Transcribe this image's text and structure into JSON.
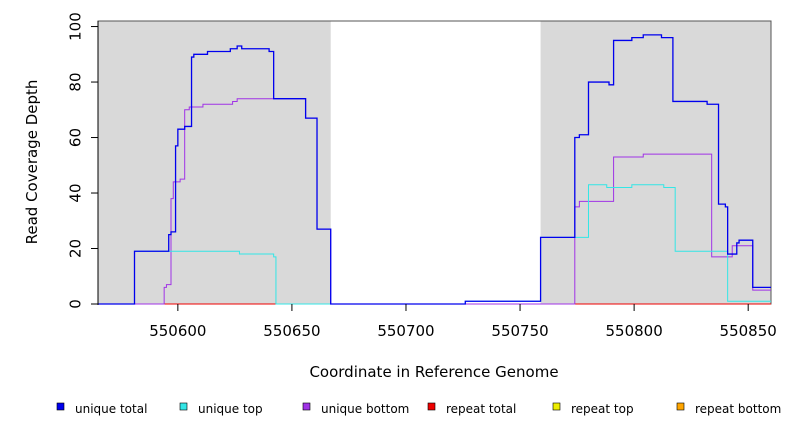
{
  "chart_data": {
    "type": "line",
    "title": "",
    "xlabel": "Coordinate in Reference Genome",
    "ylabel": "Read Coverage Depth",
    "xlim": [
      550565,
      550860
    ],
    "ylim": [
      0,
      102
    ],
    "x_ticks": [
      550600,
      550650,
      550700,
      550750,
      550800,
      550850
    ],
    "y_ticks": [
      0,
      20,
      40,
      60,
      80,
      100
    ],
    "shaded_regions": [
      {
        "from": 550565,
        "to": 550667,
        "color": "#d9d9d9"
      },
      {
        "from": 550759,
        "to": 550860,
        "color": "#d9d9d9"
      }
    ],
    "grid": false,
    "legend_position": "bottom",
    "series": [
      {
        "name": "unique total",
        "color": "#0000ee",
        "points": [
          [
            550565,
            0
          ],
          [
            550581,
            19
          ],
          [
            550596,
            25
          ],
          [
            550597,
            26
          ],
          [
            550599,
            57
          ],
          [
            550600,
            63
          ],
          [
            550603,
            64
          ],
          [
            550606,
            89
          ],
          [
            550607,
            90
          ],
          [
            550613,
            91
          ],
          [
            550623,
            92
          ],
          [
            550626,
            93
          ],
          [
            550628,
            92
          ],
          [
            550640,
            91
          ],
          [
            550642,
            74
          ],
          [
            550656,
            67
          ],
          [
            550661,
            27
          ],
          [
            550667,
            0
          ],
          [
            550726,
            1
          ],
          [
            550759,
            24
          ],
          [
            550774,
            60
          ],
          [
            550776,
            61
          ],
          [
            550780,
            80
          ],
          [
            550789,
            79
          ],
          [
            550791,
            95
          ],
          [
            550799,
            96
          ],
          [
            550804,
            97
          ],
          [
            550812,
            96
          ],
          [
            550817,
            73
          ],
          [
            550832,
            72
          ],
          [
            550837,
            36
          ],
          [
            550840,
            35
          ],
          [
            550841,
            18
          ],
          [
            550845,
            22
          ],
          [
            550846,
            23
          ],
          [
            550852,
            6
          ],
          [
            550860,
            6
          ]
        ]
      },
      {
        "name": "unique top",
        "color": "#33e6e6",
        "points": [
          [
            550565,
            0
          ],
          [
            550581,
            19
          ],
          [
            550627,
            18
          ],
          [
            550642,
            17
          ],
          [
            550643,
            0
          ],
          [
            550667,
            0
          ],
          [
            550726,
            1
          ],
          [
            550759,
            24
          ],
          [
            550776,
            24
          ],
          [
            550780,
            43
          ],
          [
            550788,
            42
          ],
          [
            550799,
            43
          ],
          [
            550813,
            42
          ],
          [
            550818,
            19
          ],
          [
            550832,
            19
          ],
          [
            550841,
            1
          ],
          [
            550860,
            1
          ]
        ]
      },
      {
        "name": "unique bottom",
        "color": "#a033e6",
        "points": [
          [
            550565,
            0
          ],
          [
            550594,
            6
          ],
          [
            550595,
            7
          ],
          [
            550597,
            38
          ],
          [
            550598,
            44
          ],
          [
            550601,
            45
          ],
          [
            550603,
            70
          ],
          [
            550605,
            71
          ],
          [
            550611,
            72
          ],
          [
            550624,
            73
          ],
          [
            550626,
            74
          ],
          [
            550642,
            74
          ],
          [
            550656,
            67
          ],
          [
            550661,
            27
          ],
          [
            550667,
            0
          ],
          [
            550774,
            35
          ],
          [
            550776,
            37
          ],
          [
            550791,
            53
          ],
          [
            550799,
            53
          ],
          [
            550804,
            54
          ],
          [
            550834,
            17
          ],
          [
            550843,
            21
          ],
          [
            550852,
            5
          ],
          [
            550860,
            5
          ]
        ]
      },
      {
        "name": "repeat total",
        "color": "#ee0000",
        "points": [
          [
            550565,
            0
          ],
          [
            550860,
            0
          ]
        ]
      },
      {
        "name": "repeat top",
        "color": "#eeee00",
        "points": [
          [
            550565,
            0
          ],
          [
            550860,
            0
          ]
        ]
      },
      {
        "name": "repeat bottom",
        "color": "#ffa500",
        "points": [
          [
            550565,
            0
          ],
          [
            550860,
            0
          ]
        ]
      }
    ]
  }
}
